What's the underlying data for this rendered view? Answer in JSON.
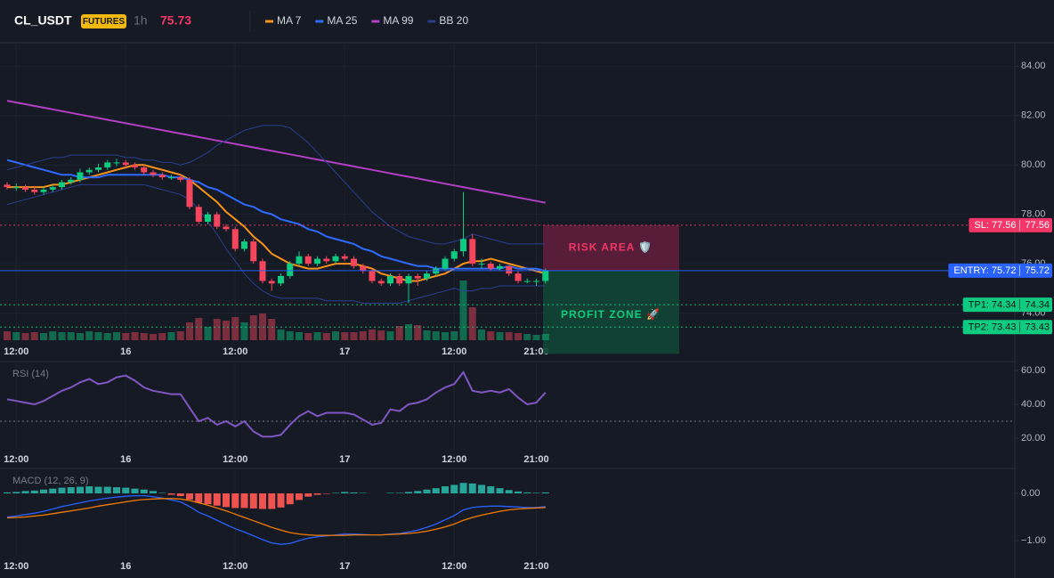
{
  "header": {
    "symbol": "CL_USDT",
    "badge": "FUTURES",
    "interval": "1h",
    "price": 75.73,
    "price_color": "#f23667"
  },
  "chart_data": [
    {
      "type": "candlestick",
      "categories": [
        null,
        "12:00",
        null,
        null,
        null,
        null,
        null,
        null,
        null,
        null,
        null,
        null,
        null,
        "16",
        null,
        null,
        null,
        null,
        null,
        null,
        null,
        null,
        null,
        null,
        null,
        "12:00",
        null,
        null,
        null,
        null,
        null,
        null,
        null,
        null,
        null,
        null,
        null,
        "17",
        null,
        null,
        null,
        null,
        null,
        null,
        null,
        null,
        null,
        null,
        null,
        "12:00",
        null,
        null,
        null,
        null,
        null,
        null,
        null,
        null,
        "21:00",
        null
      ],
      "open": [
        79.2,
        79.1,
        79.1,
        79.0,
        78.9,
        79.0,
        79.1,
        79.3,
        79.4,
        79.7,
        79.8,
        79.9,
        80.1,
        80.1,
        80.0,
        79.9,
        79.7,
        79.6,
        79.5,
        79.5,
        79.4,
        78.3,
        77.7,
        78.0,
        77.5,
        77.4,
        76.6,
        76.9,
        76.1,
        75.3,
        75.2,
        75.5,
        76.0,
        76.3,
        76.0,
        76.2,
        76.1,
        76.3,
        76.2,
        75.9,
        75.7,
        75.3,
        75.2,
        75.5,
        75.2,
        75.5,
        75.4,
        75.6,
        75.8,
        76.2,
        76.5,
        77.0,
        76.0,
        76.0,
        75.8,
        75.9,
        75.6,
        75.3,
        75.3,
        75.3
      ],
      "high": [
        79.3,
        79.25,
        79.2,
        79.15,
        79.1,
        79.2,
        79.4,
        79.5,
        79.85,
        79.9,
        80.05,
        80.2,
        80.25,
        80.2,
        80.1,
        80.0,
        79.8,
        79.7,
        79.6,
        79.6,
        79.5,
        78.4,
        78.1,
        78.1,
        77.6,
        77.5,
        77.0,
        77.0,
        76.2,
        75.4,
        75.6,
        76.1,
        76.5,
        76.4,
        76.3,
        76.3,
        76.4,
        76.4,
        76.3,
        76.0,
        75.8,
        75.4,
        75.6,
        75.6,
        75.6,
        75.6,
        75.7,
        75.9,
        76.3,
        76.6,
        78.9,
        77.2,
        76.2,
        76.1,
        76.0,
        75.9,
        75.7,
        75.4,
        75.4,
        75.8
      ],
      "low": [
        79.0,
        78.95,
        78.9,
        78.8,
        78.8,
        78.9,
        79.0,
        79.2,
        79.3,
        79.6,
        79.7,
        79.8,
        79.95,
        79.9,
        79.8,
        79.6,
        79.5,
        79.4,
        79.4,
        79.3,
        78.2,
        77.6,
        77.6,
        77.4,
        77.3,
        76.5,
        76.5,
        76.0,
        75.2,
        74.9,
        75.1,
        75.4,
        75.9,
        75.9,
        75.9,
        76.0,
        76.0,
        76.1,
        75.8,
        75.6,
        75.2,
        75.1,
        75.1,
        75.1,
        74.4,
        75.1,
        75.3,
        75.5,
        75.7,
        76.1,
        76.3,
        75.9,
        75.8,
        75.7,
        75.7,
        75.5,
        75.2,
        75.2,
        75.1,
        75.2
      ],
      "close": [
        79.1,
        79.1,
        79.0,
        78.9,
        79.0,
        79.1,
        79.3,
        79.4,
        79.7,
        79.8,
        79.9,
        80.1,
        80.1,
        80.0,
        79.9,
        79.7,
        79.6,
        79.5,
        79.5,
        79.4,
        78.3,
        77.7,
        78.0,
        77.5,
        77.4,
        76.6,
        76.9,
        76.1,
        75.3,
        75.2,
        75.5,
        76.0,
        76.3,
        76.0,
        76.2,
        76.1,
        76.3,
        76.2,
        75.9,
        75.7,
        75.3,
        75.2,
        75.5,
        75.2,
        75.5,
        75.4,
        75.6,
        75.8,
        76.2,
        76.5,
        77.0,
        76.0,
        76.0,
        75.8,
        75.9,
        75.6,
        75.3,
        75.3,
        75.3,
        75.73
      ],
      "volume": [
        10,
        9,
        8,
        9,
        8,
        10,
        9,
        9,
        8,
        10,
        9,
        8,
        9,
        8,
        9,
        8,
        7,
        8,
        9,
        10,
        20,
        25,
        15,
        24,
        22,
        26,
        20,
        28,
        30,
        24,
        12,
        10,
        9,
        8,
        9,
        8,
        10,
        9,
        9,
        10,
        12,
        11,
        10,
        16,
        18,
        17,
        11,
        10,
        9,
        10,
        67,
        37,
        12,
        10,
        9,
        9,
        8,
        7,
        6,
        7
      ],
      "up_color": "#0ecb81",
      "down_color": "#f6465d",
      "ylim": [
        72.9,
        84.95
      ],
      "yticks": [
        {
          "value": 74,
          "label": "74.00"
        },
        {
          "value": 76,
          "label": "76.00"
        },
        {
          "value": 78,
          "label": "78.00"
        },
        {
          "value": 80,
          "label": "80.00"
        },
        {
          "value": 82,
          "label": "82.00"
        },
        {
          "value": 84,
          "label": "84.00"
        }
      ],
      "grid": true,
      "overlays": [
        {
          "name": "MA 7",
          "color": "#f7931a",
          "values": [
            79.1,
            79.1,
            79.1,
            79.1,
            79.1,
            79.2,
            79.2,
            79.3,
            79.4,
            79.5,
            79.6,
            79.7,
            79.8,
            79.9,
            80.0,
            80.0,
            79.9,
            79.8,
            79.7,
            79.6,
            79.4,
            79.1,
            78.8,
            78.5,
            78.1,
            77.8,
            77.5,
            77.1,
            76.8,
            76.4,
            76.2,
            76.0,
            75.9,
            75.8,
            75.8,
            75.9,
            76.0,
            76.0,
            76.0,
            75.9,
            75.8,
            75.6,
            75.5,
            75.4,
            75.3,
            75.3,
            75.4,
            75.5,
            75.6,
            75.8,
            76.0,
            76.1,
            76.1,
            76.2,
            76.1,
            76.0,
            75.9,
            75.8,
            75.7,
            75.6
          ]
        },
        {
          "name": "MA 25",
          "color": "#2f6bff",
          "values": [
            80.2,
            80.1,
            80.0,
            79.9,
            79.8,
            79.7,
            79.6,
            79.6,
            79.5,
            79.5,
            79.5,
            79.6,
            79.6,
            79.6,
            79.6,
            79.6,
            79.6,
            79.6,
            79.5,
            79.5,
            79.4,
            79.3,
            79.1,
            79.0,
            78.8,
            78.6,
            78.4,
            78.3,
            78.1,
            78.0,
            77.8,
            77.7,
            77.6,
            77.4,
            77.3,
            77.1,
            77.0,
            76.9,
            76.8,
            76.6,
            76.5,
            76.3,
            76.2,
            76.1,
            76.0,
            75.9,
            75.9,
            75.8,
            75.8,
            75.8,
            75.8,
            75.8,
            75.8,
            75.8,
            75.8,
            75.9,
            75.8,
            75.8,
            75.8,
            75.7
          ]
        },
        {
          "name": "MA 99",
          "color": "#b23fc4",
          "values": [
            82.6,
            82.53,
            82.46,
            82.39,
            82.32,
            82.25,
            82.18,
            82.11,
            82.04,
            81.97,
            81.9,
            81.83,
            81.76,
            81.69,
            81.62,
            81.55,
            81.48,
            81.41,
            81.34,
            81.27,
            81.2,
            81.13,
            81.06,
            80.99,
            80.92,
            80.85,
            80.78,
            80.71,
            80.64,
            80.57,
            80.5,
            80.43,
            80.36,
            80.29,
            80.22,
            80.15,
            80.08,
            80.01,
            79.94,
            79.87,
            79.8,
            79.73,
            79.66,
            79.59,
            79.52,
            79.45,
            79.38,
            79.31,
            79.24,
            79.17,
            79.1,
            79.03,
            78.96,
            78.89,
            78.82,
            78.75,
            78.68,
            78.61,
            78.54,
            78.47
          ]
        },
        {
          "name": "BB 20",
          "color": "#2a3f8f",
          "upper": [
            79.8,
            79.9,
            80.0,
            80.1,
            80.2,
            80.3,
            80.3,
            80.4,
            80.4,
            80.4,
            80.4,
            80.4,
            80.4,
            80.3,
            80.3,
            80.2,
            80.2,
            80.1,
            80.1,
            80.0,
            80.1,
            80.3,
            80.5,
            80.8,
            81.0,
            81.2,
            81.4,
            81.5,
            81.6,
            81.6,
            81.6,
            81.5,
            81.2,
            80.9,
            80.5,
            80.1,
            79.7,
            79.3,
            78.9,
            78.5,
            78.1,
            77.8,
            77.5,
            77.3,
            77.1,
            77.0,
            76.9,
            76.8,
            76.8,
            76.9,
            77.0,
            77.2,
            77.1,
            77.0,
            76.9,
            76.8,
            76.8,
            76.8,
            76.8,
            76.8
          ],
          "lower": [
            78.4,
            78.5,
            78.6,
            78.7,
            78.8,
            78.9,
            79.0,
            79.1,
            79.2,
            79.2,
            79.2,
            79.2,
            79.2,
            79.2,
            79.2,
            79.2,
            79.1,
            79.0,
            78.9,
            78.8,
            78.6,
            78.2,
            77.7,
            77.2,
            76.6,
            76.1,
            75.6,
            75.2,
            74.9,
            74.7,
            74.6,
            74.6,
            74.6,
            74.6,
            74.6,
            74.5,
            74.5,
            74.5,
            74.5,
            74.4,
            74.4,
            74.4,
            74.4,
            74.4,
            74.5,
            74.6,
            74.7,
            74.8,
            74.9,
            75.0,
            74.9,
            74.9,
            75.0,
            75.0,
            75.1,
            75.1,
            75.1,
            75.1,
            75.1,
            75.1
          ]
        }
      ],
      "levels": [
        {
          "label": "SL: 77.56",
          "value": 77.56,
          "color": "#f23667",
          "text_color": "#ffffff",
          "dashed": true
        },
        {
          "label": "ENTRY: 75.72",
          "value": 75.72,
          "color": "#2962ff",
          "text_color": "#ffffff",
          "dashed": false
        },
        {
          "label": "TP1: 74.34",
          "value": 74.34,
          "color": "#0ecb81",
          "text_color": "#0b1a12",
          "dashed": true
        },
        {
          "label": "TP2: 73.43",
          "value": 73.43,
          "color": "#0ecb81",
          "text_color": "#0b1a12",
          "dashed": true
        }
      ],
      "zones": [
        {
          "label": "RISK AREA 🛡️",
          "top": 77.56,
          "bottom": 75.72,
          "color": "#5e1e3c",
          "text_color": "#f23667"
        },
        {
          "label": "PROFIT ZONE 🚀",
          "top": 75.72,
          "bottom": 72.35,
          "color": "#0f4634",
          "text_color": "#0ecb81"
        }
      ]
    },
    {
      "type": "line",
      "title": "RSI (14)",
      "categories": [
        null,
        "12:00",
        null,
        null,
        null,
        null,
        null,
        null,
        null,
        null,
        null,
        null,
        null,
        "16",
        null,
        null,
        null,
        null,
        null,
        null,
        null,
        null,
        null,
        null,
        null,
        "12:00",
        null,
        null,
        null,
        null,
        null,
        null,
        null,
        null,
        null,
        null,
        null,
        "17",
        null,
        null,
        null,
        null,
        null,
        null,
        null,
        null,
        null,
        null,
        null,
        "12:00",
        null,
        null,
        null,
        null,
        null,
        null,
        null,
        null,
        "21:00",
        null
      ],
      "values": [
        43,
        42,
        41,
        40,
        42,
        45,
        48,
        50,
        53,
        55,
        52,
        53,
        56,
        57,
        54,
        50,
        48,
        47,
        46,
        46,
        38,
        30,
        32,
        28,
        30,
        27,
        30,
        24,
        21,
        21,
        22,
        28,
        33,
        36,
        33,
        35,
        35,
        35,
        34,
        31,
        28,
        29,
        37,
        36,
        40,
        41,
        43,
        47,
        50,
        52,
        59,
        48,
        47,
        48,
        47,
        49,
        44,
        40,
        41,
        47
      ],
      "color": "#7e57c2",
      "hline": 30,
      "ylim": [
        13.2,
        64.2
      ],
      "yticks": [
        {
          "value": 20,
          "label": "20.00"
        },
        {
          "value": 40,
          "label": "40.00"
        },
        {
          "value": 60,
          "label": "60.00"
        }
      ]
    },
    {
      "type": "macd",
      "title": "MACD (12, 26, 9)",
      "categories": [
        null,
        "12:00",
        null,
        null,
        null,
        null,
        null,
        null,
        null,
        null,
        null,
        null,
        null,
        "16",
        null,
        null,
        null,
        null,
        null,
        null,
        null,
        null,
        null,
        null,
        null,
        "12:00",
        null,
        null,
        null,
        null,
        null,
        null,
        null,
        null,
        null,
        null,
        null,
        "17",
        null,
        null,
        null,
        null,
        null,
        null,
        null,
        null,
        null,
        null,
        null,
        "12:00",
        null,
        null,
        null,
        null,
        null,
        null,
        null,
        null,
        "21:00",
        null
      ],
      "histogram": [
        0.02,
        0.03,
        0.05,
        0.06,
        0.08,
        0.1,
        0.12,
        0.13,
        0.14,
        0.15,
        0.14,
        0.14,
        0.13,
        0.12,
        0.1,
        0.08,
        0.05,
        0.01,
        -0.03,
        -0.06,
        -0.13,
        -0.2,
        -0.23,
        -0.26,
        -0.29,
        -0.31,
        -0.31,
        -0.32,
        -0.33,
        -0.33,
        -0.3,
        -0.23,
        -0.14,
        -0.07,
        -0.03,
        -0.01,
        0.01,
        0.03,
        0.02,
        0.01,
        0,
        0,
        0.01,
        0.01,
        0.03,
        0.05,
        0.08,
        0.11,
        0.15,
        0.18,
        0.22,
        0.21,
        0.18,
        0.15,
        0.11,
        0.07,
        0.04,
        0.02,
        0.01,
        0.02
      ],
      "positive_color": "#26a69a",
      "negative_color": "#ef5350",
      "series": [
        {
          "color": "#2962ff",
          "values": [
            -0.5,
            -0.48,
            -0.45,
            -0.42,
            -0.38,
            -0.33,
            -0.28,
            -0.24,
            -0.2,
            -0.16,
            -0.13,
            -0.1,
            -0.08,
            -0.06,
            -0.05,
            -0.05,
            -0.07,
            -0.1,
            -0.14,
            -0.18,
            -0.28,
            -0.4,
            -0.48,
            -0.57,
            -0.66,
            -0.75,
            -0.82,
            -0.9,
            -0.98,
            -1.05,
            -1.08,
            -1.06,
            -1.0,
            -0.95,
            -0.92,
            -0.9,
            -0.88,
            -0.86,
            -0.86,
            -0.87,
            -0.88,
            -0.88,
            -0.86,
            -0.85,
            -0.82,
            -0.78,
            -0.72,
            -0.65,
            -0.56,
            -0.47,
            -0.35,
            -0.3,
            -0.28,
            -0.27,
            -0.27,
            -0.28,
            -0.29,
            -0.3,
            -0.3,
            -0.28
          ]
        },
        {
          "color": "#f57c00",
          "values": [
            -0.52,
            -0.51,
            -0.5,
            -0.48,
            -0.46,
            -0.43,
            -0.4,
            -0.37,
            -0.34,
            -0.31,
            -0.27,
            -0.24,
            -0.21,
            -0.18,
            -0.15,
            -0.13,
            -0.12,
            -0.11,
            -0.11,
            -0.12,
            -0.15,
            -0.2,
            -0.25,
            -0.31,
            -0.37,
            -0.44,
            -0.51,
            -0.58,
            -0.65,
            -0.72,
            -0.78,
            -0.83,
            -0.86,
            -0.88,
            -0.89,
            -0.89,
            -0.89,
            -0.89,
            -0.88,
            -0.88,
            -0.88,
            -0.88,
            -0.87,
            -0.86,
            -0.85,
            -0.83,
            -0.8,
            -0.76,
            -0.71,
            -0.65,
            -0.57,
            -0.51,
            -0.46,
            -0.42,
            -0.38,
            -0.35,
            -0.33,
            -0.32,
            -0.31,
            -0.3
          ]
        }
      ],
      "ylim": [
        -1.34,
        0.49
      ],
      "yticks": [
        {
          "value": -1,
          "label": "−1.00"
        },
        {
          "value": 0,
          "label": "0.00"
        }
      ]
    }
  ]
}
